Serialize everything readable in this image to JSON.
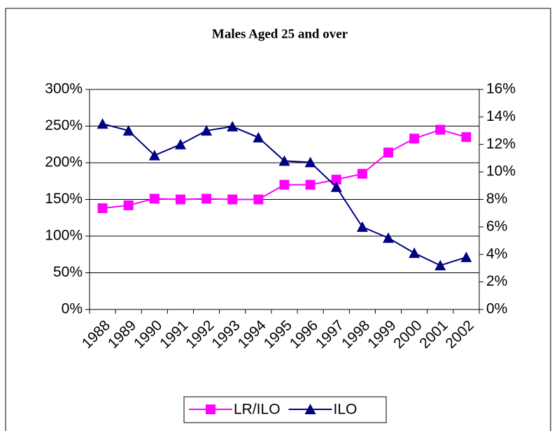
{
  "chart_data": {
    "type": "line",
    "title": "Males Aged 25 and over",
    "categories": [
      "1988",
      "1989",
      "1990",
      "1991",
      "1992",
      "1993",
      "1994",
      "1995",
      "1996",
      "1997",
      "1998",
      "1999",
      "2000",
      "2001",
      "2002"
    ],
    "series": [
      {
        "name": "LR/ILO",
        "color": "#ff00ff",
        "marker": "square",
        "values": [
          138,
          142,
          151,
          150,
          151,
          150,
          150,
          170,
          170,
          177,
          185,
          214,
          233,
          245,
          235
        ]
      },
      {
        "name": "ILO",
        "color": "#000080",
        "marker": "triangle",
        "axis": "y2",
        "values": [
          13.5,
          13.0,
          11.2,
          12.0,
          13.0,
          13.3,
          12.5,
          10.8,
          10.7,
          8.9,
          6.0,
          5.2,
          4.1,
          3.2,
          3.8
        ]
      }
    ],
    "ylim": [
      0,
      300
    ],
    "yticks": [
      {
        "value": 0,
        "label": "0%"
      },
      {
        "value": 50,
        "label": "50%"
      },
      {
        "value": 100,
        "label": "100%"
      },
      {
        "value": 150,
        "label": "150%"
      },
      {
        "value": 200,
        "label": "200%"
      },
      {
        "value": 250,
        "label": "250%"
      },
      {
        "value": 300,
        "label": "300%"
      }
    ],
    "y2lim": [
      0,
      16
    ],
    "y2ticks": [
      {
        "value": 0,
        "label": "0%"
      },
      {
        "value": 2,
        "label": "2%"
      },
      {
        "value": 4,
        "label": "4%"
      },
      {
        "value": 6,
        "label": "6%"
      },
      {
        "value": 8,
        "label": "8%"
      },
      {
        "value": 10,
        "label": "10%"
      },
      {
        "value": 12,
        "label": "12%"
      },
      {
        "value": 14,
        "label": "14%"
      },
      {
        "value": 16,
        "label": "16%"
      }
    ],
    "grid": true,
    "legend": "bottom"
  }
}
